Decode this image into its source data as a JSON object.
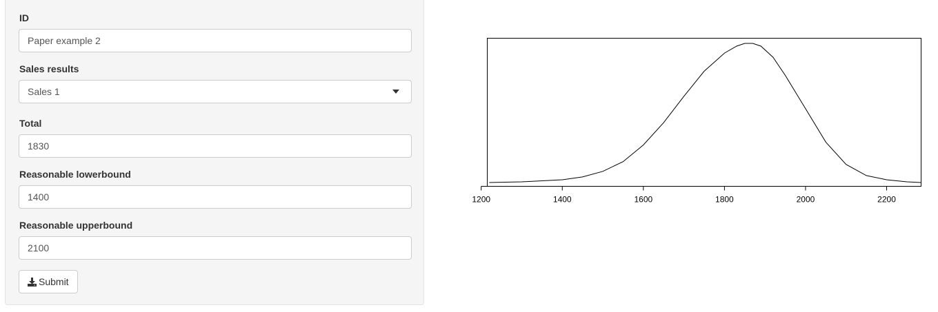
{
  "form": {
    "id": {
      "label": "ID",
      "value": "Paper example 2"
    },
    "sales": {
      "label": "Sales results",
      "selected": "Sales 1"
    },
    "total": {
      "label": "Total",
      "value": "1830"
    },
    "lower": {
      "label": "Reasonable lowerbound",
      "value": "1400"
    },
    "upper": {
      "label": "Reasonable upperbound",
      "value": "2100"
    },
    "submit_label": "Submit",
    "submit_icon": "download-icon"
  },
  "chart_data": {
    "type": "line",
    "title": "",
    "xlabel": "",
    "ylabel": "",
    "xlim": [
      1215,
      2285
    ],
    "ylim": [
      0,
      1
    ],
    "x_ticks": [
      1200,
      1400,
      1600,
      1800,
      2000,
      2200
    ],
    "y_ticks_shown": false,
    "grid": false,
    "series": [
      {
        "x": [
          1220,
          1300,
          1400,
          1450,
          1500,
          1550,
          1600,
          1650,
          1700,
          1750,
          1800,
          1830,
          1850,
          1870,
          1890,
          1920,
          1950,
          2000,
          2050,
          2100,
          2150,
          2200,
          2250,
          2285
        ],
        "values": [
          0.0,
          0.005,
          0.02,
          0.04,
          0.08,
          0.15,
          0.27,
          0.43,
          0.62,
          0.8,
          0.93,
          0.98,
          1.0,
          1.0,
          0.98,
          0.9,
          0.77,
          0.53,
          0.29,
          0.13,
          0.05,
          0.02,
          0.005,
          0.0
        ]
      }
    ]
  }
}
